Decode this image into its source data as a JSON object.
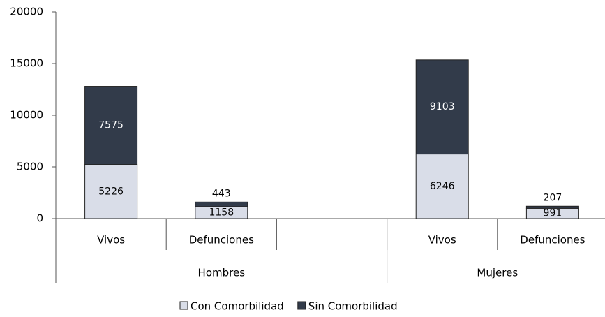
{
  "chart_data": {
    "type": "bar",
    "stacked": true,
    "categories": [
      "Vivos",
      "Defunciones",
      null,
      "Vivos",
      "Defunciones"
    ],
    "groups": [
      {
        "label": "Hombres",
        "span": 3
      },
      {
        "label": "Mujeres",
        "span": 2
      }
    ],
    "series": [
      {
        "name": "Con Comorbilidad",
        "color": "#d9dde8",
        "values": [
          5226,
          1158,
          null,
          6246,
          991
        ]
      },
      {
        "name": "Sin Comorbilidad",
        "color": "#323b4a",
        "values": [
          7575,
          443,
          null,
          9103,
          207
        ]
      }
    ],
    "ylim": [
      0,
      20000
    ],
    "yticks": [
      0,
      5000,
      10000,
      15000,
      20000
    ],
    "grid": false,
    "legend": "bottom"
  }
}
